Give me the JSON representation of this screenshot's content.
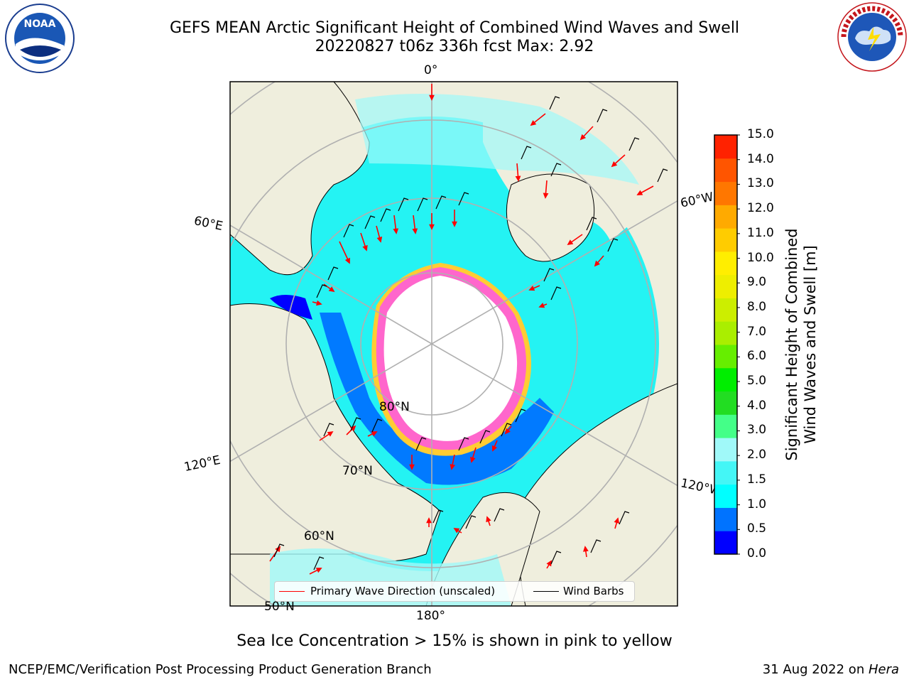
{
  "title": {
    "line1": "GEFS MEAN Arctic Significant Height of Combined Wind Waves and Swell",
    "line2": "20220827 t06z 336h fcst   Max: 2.92"
  },
  "logos": {
    "left": "NOAA",
    "left_ring": "NATIONAL OCEANIC AND ATMOSPHERIC ADMINISTRATION · U.S. DEPARTMENT OF COMMERCE",
    "right_ring": "NATIONAL WEATHER SERVICE"
  },
  "map": {
    "lon_labels": [
      "0°",
      "60°W",
      "120°W",
      "180°",
      "120°E",
      "60°E"
    ],
    "lat_labels": [
      "80°N",
      "70°N",
      "60°N",
      "50°N"
    ],
    "colors": {
      "land": "#efeedd",
      "sea_ice_white": "#ffffff",
      "ice_pink": "#ff66cc",
      "ice_yellow": "#ffcc33",
      "arrow": "#ff0000"
    },
    "legend": {
      "primary": "Primary Wave Direction (unscaled)",
      "barbs": "Wind Barbs"
    }
  },
  "colorbar": {
    "title_line1": "Significant Height of Combined",
    "title_line2": "Wind Waves and Swell [m]",
    "ticks": [
      "15.0",
      "14.0",
      "13.0",
      "12.0",
      "11.0",
      "10.0",
      "9.0",
      "8.0",
      "7.0",
      "6.0",
      "5.0",
      "4.0",
      "3.0",
      "2.0",
      "1.5",
      "1.0",
      "0.5",
      "0.0"
    ],
    "colors_bottom_to_top": [
      "#0000ff",
      "#0073ff",
      "#00ffff",
      "#44f6f6",
      "#a0f9f9",
      "#44ff88",
      "#22dd22",
      "#00ee00",
      "#66ee00",
      "#aaee00",
      "#ccee00",
      "#eeee00",
      "#ffee00",
      "#ffcc00",
      "#ffaa00",
      "#ff7700",
      "#ff5500",
      "#ff2200"
    ]
  },
  "note": "Sea Ice Concentration > 15% is shown in pink to yellow",
  "footer": {
    "left": "NCEP/EMC/Verification Post Processing Product Generation Branch",
    "right_date": "31 Aug 2022 on ",
    "right_host": "Hera"
  }
}
